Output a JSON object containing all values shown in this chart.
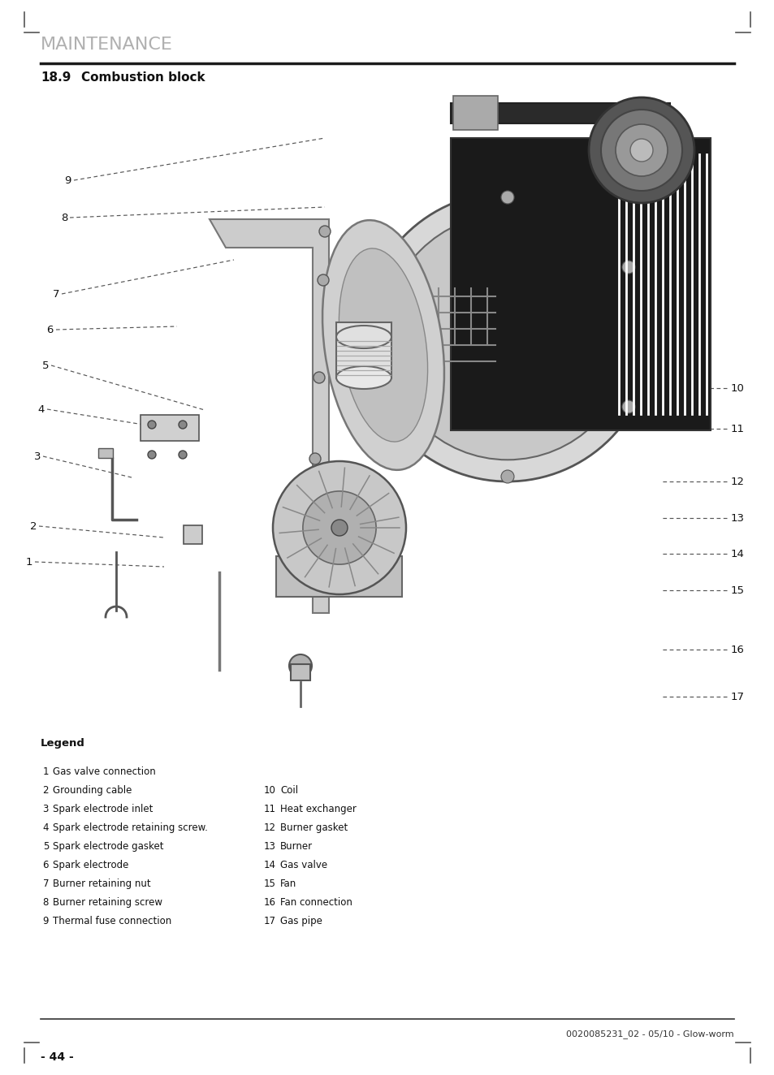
{
  "title": "MAINTENANCE",
  "section": "18.9",
  "section_title": "Combustion block",
  "page_number": "- 44 -",
  "footer_text": "0020085231_02 - 05/10 - Glow-worm",
  "legend_title": "Legend",
  "legend_left": [
    [
      "1",
      "Gas valve connection"
    ],
    [
      "2",
      "Grounding cable"
    ],
    [
      "3",
      "Spark electrode inlet"
    ],
    [
      "4",
      "Spark electrode retaining screw."
    ],
    [
      "5",
      "Spark electrode gasket"
    ],
    [
      "6",
      "Spark electrode"
    ],
    [
      "7",
      "Burner retaining nut"
    ],
    [
      "8",
      "Burner retaining screw"
    ],
    [
      "9",
      "Thermal fuse connection"
    ]
  ],
  "legend_right": [
    [
      "10",
      "Coil"
    ],
    [
      "11",
      "Heat exchanger"
    ],
    [
      "12",
      "Burner gasket"
    ],
    [
      "13",
      "Burner"
    ],
    [
      "14",
      "Gas valve"
    ],
    [
      "15",
      "Fan"
    ],
    [
      "16",
      "Fan connection"
    ],
    [
      "17",
      "Gas pipe"
    ]
  ],
  "title_color": "#b0b0b0",
  "title_fontsize": 16,
  "section_fontsize": 11,
  "legend_fontsize": 8.5,
  "body_bg": "#ffffff",
  "line_color": "#222222",
  "corner_mark_color": "#555555"
}
